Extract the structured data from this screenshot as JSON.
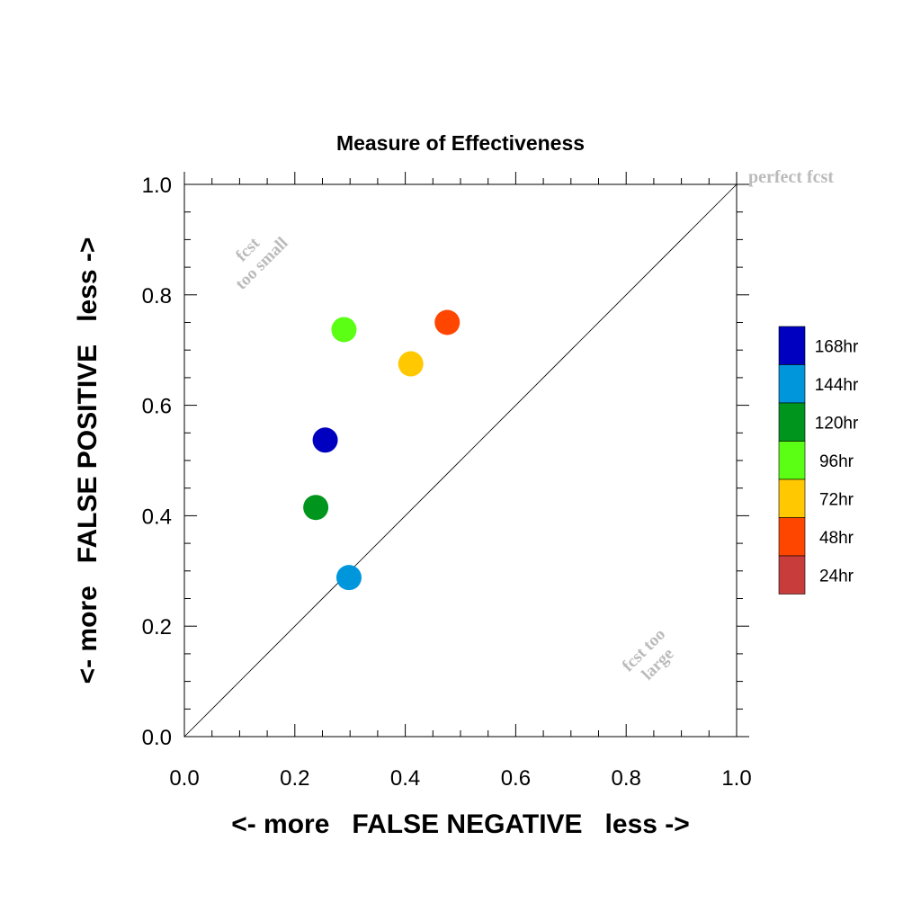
{
  "chart_data": {
    "type": "scatter",
    "title": "Measure of Effectiveness",
    "xlabel": "<- more   FALSE NEGATIVE   less ->",
    "ylabel": "<- more   FALSE POSITIVE   less ->",
    "xlim": [
      0.0,
      1.0
    ],
    "ylim": [
      0.0,
      1.0
    ],
    "x_ticks": [
      "0.0",
      "0.2",
      "0.4",
      "0.6",
      "0.8",
      "1.0"
    ],
    "y_ticks": [
      "0.0",
      "0.2",
      "0.4",
      "0.6",
      "0.8",
      "1.0"
    ],
    "grid": false,
    "diagonal_line": true,
    "annotations": {
      "perfect": "perfect fcst",
      "too_small_line1": "fcst",
      "too_small_line2": "too small",
      "too_large_line1": "fcst too",
      "too_large_line2": "large"
    },
    "legend_placement": "right",
    "legend": [
      {
        "label": "168hr",
        "color": "#0000c0"
      },
      {
        "label": "144hr",
        "color": "#0096dc"
      },
      {
        "label": "120hr",
        "color": "#00961e"
      },
      {
        "label": "96hr",
        "color": "#5aff14"
      },
      {
        "label": "72hr",
        "color": "#ffc800"
      },
      {
        "label": "48hr",
        "color": "#ff4600"
      },
      {
        "label": "24hr",
        "color": "#c83c3c"
      }
    ],
    "points": [
      {
        "name": "168hr",
        "x": 0.255,
        "y": 0.537,
        "color": "#0000c0"
      },
      {
        "name": "144hr",
        "x": 0.298,
        "y": 0.288,
        "color": "#0096dc"
      },
      {
        "name": "120hr",
        "x": 0.238,
        "y": 0.415,
        "color": "#00961e"
      },
      {
        "name": "96hr",
        "x": 0.289,
        "y": 0.737,
        "color": "#5aff14"
      },
      {
        "name": "72hr",
        "x": 0.41,
        "y": 0.675,
        "color": "#ffc800"
      },
      {
        "name": "48hr",
        "x": 0.476,
        "y": 0.75,
        "color": "#ff4600"
      }
    ]
  }
}
